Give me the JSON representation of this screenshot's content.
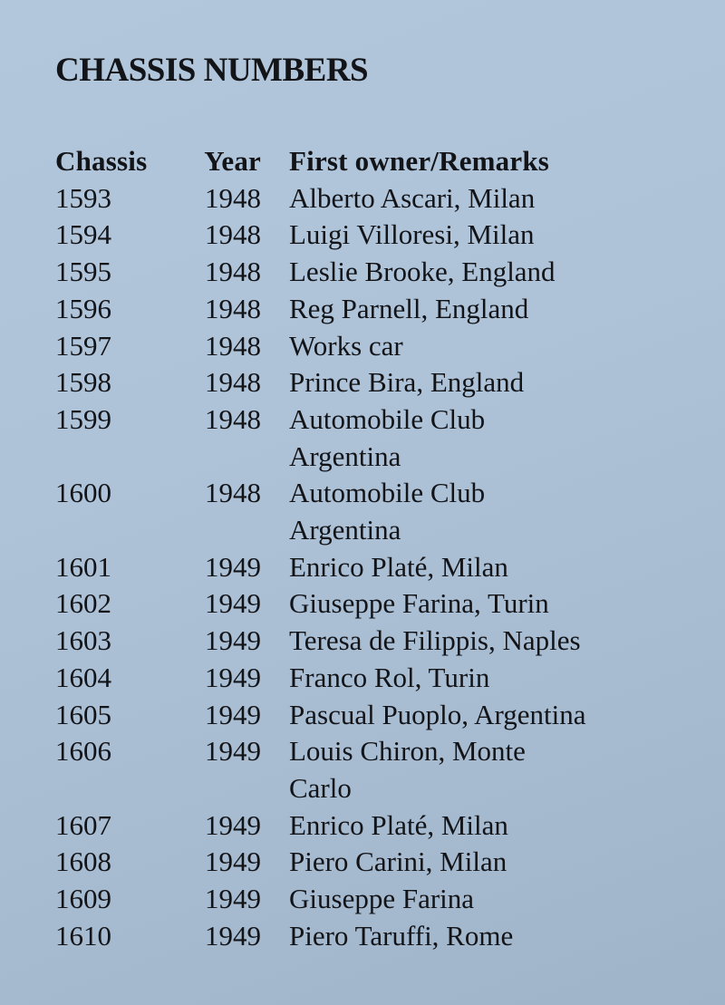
{
  "title": "CHASSIS NUMBERS",
  "columns": [
    "Chassis",
    "Year",
    "First owner/Remarks"
  ],
  "rows": [
    {
      "chassis": "1593",
      "year": "1948",
      "remarks": "Alberto Ascari, Milan"
    },
    {
      "chassis": "1594",
      "year": "1948",
      "remarks": "Luigi Villoresi, Milan"
    },
    {
      "chassis": "1595",
      "year": "1948",
      "remarks": "Leslie Brooke, England"
    },
    {
      "chassis": "1596",
      "year": "1948",
      "remarks": "Reg Parnell, England"
    },
    {
      "chassis": "1597",
      "year": "1948",
      "remarks": "Works car"
    },
    {
      "chassis": "1598",
      "year": "1948",
      "remarks": "Prince Bira, England"
    },
    {
      "chassis": "1599",
      "year": "1948",
      "remarks": "Automobile Club\nArgentina"
    },
    {
      "chassis": "1600",
      "year": "1948",
      "remarks": "Automobile Club\nArgentina"
    },
    {
      "chassis": "1601",
      "year": "1949",
      "remarks": "Enrico Platé, Milan"
    },
    {
      "chassis": "1602",
      "year": "1949",
      "remarks": "Giuseppe Farina, Turin"
    },
    {
      "chassis": "1603",
      "year": "1949",
      "remarks": "Teresa de Filippis, Naples"
    },
    {
      "chassis": "1604",
      "year": "1949",
      "remarks": "Franco Rol, Turin"
    },
    {
      "chassis": "1605",
      "year": "1949",
      "remarks": "Pascual Puoplo, Argentina"
    },
    {
      "chassis": "1606",
      "year": "1949",
      "remarks": "Louis Chiron, Monte\nCarlo"
    },
    {
      "chassis": "1607",
      "year": "1949",
      "remarks": "Enrico Platé, Milan"
    },
    {
      "chassis": "1608",
      "year": "1949",
      "remarks": "Piero Carini, Milan"
    },
    {
      "chassis": "1609",
      "year": "1949",
      "remarks": "Giuseppe Farina"
    },
    {
      "chassis": "1610",
      "year": "1949",
      "remarks": "Piero Taruffi, Rome"
    }
  ]
}
